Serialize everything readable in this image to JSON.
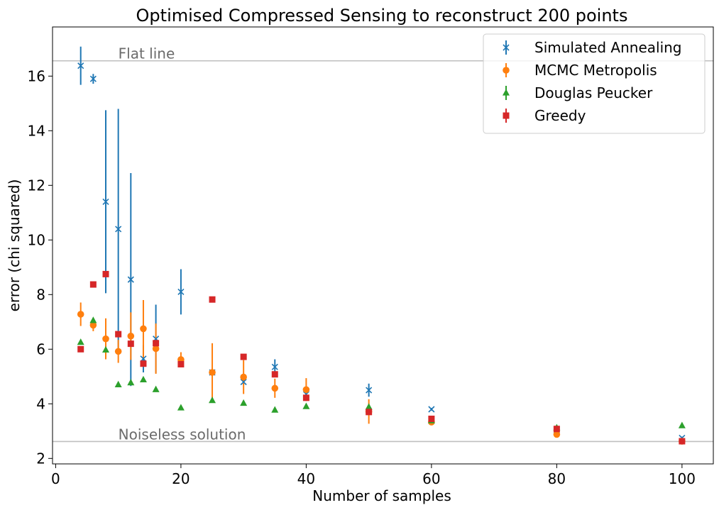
{
  "chart_data": {
    "type": "scatter",
    "title": "Optimised Compressed Sensing to reconstruct 200 points",
    "xlabel": "Number of samples",
    "ylabel": "error (chi squared)",
    "xlim": [
      -0.5,
      105
    ],
    "ylim": [
      1.8,
      17.8
    ],
    "xticks": [
      0,
      20,
      40,
      60,
      80,
      100
    ],
    "yticks": [
      2,
      4,
      6,
      8,
      10,
      12,
      14,
      16
    ],
    "legend_position": "top-right",
    "reference_lines": [
      {
        "label": "Flat line",
        "y": 16.56,
        "color": "#bfbfbf"
      },
      {
        "label": "Noiseless solution",
        "y": 2.62,
        "color": "#bfbfbf"
      }
    ],
    "series": [
      {
        "name": "Simulated Annealing",
        "marker": "x",
        "color": "#1f77b4",
        "points": [
          {
            "x": 4,
            "y": 16.38,
            "err": 0.7
          },
          {
            "x": 6,
            "y": 15.9,
            "err": 0.18
          },
          {
            "x": 8,
            "y": 11.4,
            "err": 3.35
          },
          {
            "x": 10,
            "y": 10.4,
            "err": 4.4
          },
          {
            "x": 12,
            "y": 8.55,
            "err": 3.9
          },
          {
            "x": 14,
            "y": 5.65,
            "err": 0.5
          },
          {
            "x": 16,
            "y": 6.38,
            "err": 1.25
          },
          {
            "x": 20,
            "y": 8.1,
            "err": 0.83
          },
          {
            "x": 25,
            "y": 5.15,
            "err": 0.1
          },
          {
            "x": 30,
            "y": 4.8,
            "err": 0.1
          },
          {
            "x": 35,
            "y": 5.35,
            "err": 0.28
          },
          {
            "x": 40,
            "y": 4.35,
            "err": 0.1
          },
          {
            "x": 50,
            "y": 4.5,
            "err": 0.24
          },
          {
            "x": 60,
            "y": 3.8,
            "err": 0.05
          },
          {
            "x": 80,
            "y": 3.05,
            "err": 0.05
          },
          {
            "x": 100,
            "y": 2.75,
            "err": 0.05
          }
        ]
      },
      {
        "name": "MCMC Metropolis",
        "marker": "o",
        "color": "#ff7f0e",
        "points": [
          {
            "x": 4,
            "y": 7.28,
            "err": 0.43
          },
          {
            "x": 6,
            "y": 6.88,
            "err": 0.22
          },
          {
            "x": 8,
            "y": 6.38,
            "err": 0.75
          },
          {
            "x": 10,
            "y": 5.92,
            "err": 0.42
          },
          {
            "x": 12,
            "y": 6.48,
            "err": 0.87
          },
          {
            "x": 14,
            "y": 6.75,
            "err": 1.05
          },
          {
            "x": 16,
            "y": 6.02,
            "err": 0.92
          },
          {
            "x": 20,
            "y": 5.62,
            "err": 0.27
          },
          {
            "x": 25,
            "y": 5.15,
            "err": 1.07
          },
          {
            "x": 30,
            "y": 4.98,
            "err": 0.62
          },
          {
            "x": 35,
            "y": 4.57,
            "err": 0.35
          },
          {
            "x": 40,
            "y": 4.52,
            "err": 0.42
          },
          {
            "x": 50,
            "y": 3.72,
            "err": 0.45
          },
          {
            "x": 60,
            "y": 3.33,
            "err": 0.1
          },
          {
            "x": 80,
            "y": 2.88,
            "err": 0.08
          },
          {
            "x": 100,
            "y": 2.63,
            "err": 0.05
          }
        ]
      },
      {
        "name": "Douglas Peucker",
        "marker": "^",
        "color": "#2ca02c",
        "points": [
          {
            "x": 4,
            "y": 6.25
          },
          {
            "x": 6,
            "y": 7.05
          },
          {
            "x": 8,
            "y": 5.97
          },
          {
            "x": 10,
            "y": 4.7
          },
          {
            "x": 12,
            "y": 4.77
          },
          {
            "x": 14,
            "y": 4.88
          },
          {
            "x": 16,
            "y": 4.52
          },
          {
            "x": 20,
            "y": 3.85
          },
          {
            "x": 25,
            "y": 4.12
          },
          {
            "x": 30,
            "y": 4.02
          },
          {
            "x": 35,
            "y": 3.77
          },
          {
            "x": 40,
            "y": 3.9
          },
          {
            "x": 50,
            "y": 3.88
          },
          {
            "x": 60,
            "y": 3.38
          },
          {
            "x": 80,
            "y": 3.12
          },
          {
            "x": 100,
            "y": 3.2
          }
        ]
      },
      {
        "name": "Greedy",
        "marker": "s",
        "color": "#d62728",
        "points": [
          {
            "x": 4,
            "y": 6.0
          },
          {
            "x": 6,
            "y": 8.37
          },
          {
            "x": 8,
            "y": 8.75
          },
          {
            "x": 10,
            "y": 6.55
          },
          {
            "x": 12,
            "y": 6.2
          },
          {
            "x": 14,
            "y": 5.47
          },
          {
            "x": 16,
            "y": 6.22
          },
          {
            "x": 20,
            "y": 5.45
          },
          {
            "x": 25,
            "y": 7.82
          },
          {
            "x": 30,
            "y": 5.72
          },
          {
            "x": 35,
            "y": 5.08
          },
          {
            "x": 40,
            "y": 4.22
          },
          {
            "x": 50,
            "y": 3.7
          },
          {
            "x": 60,
            "y": 3.45
          },
          {
            "x": 80,
            "y": 3.08
          },
          {
            "x": 100,
            "y": 2.63
          }
        ]
      }
    ]
  }
}
